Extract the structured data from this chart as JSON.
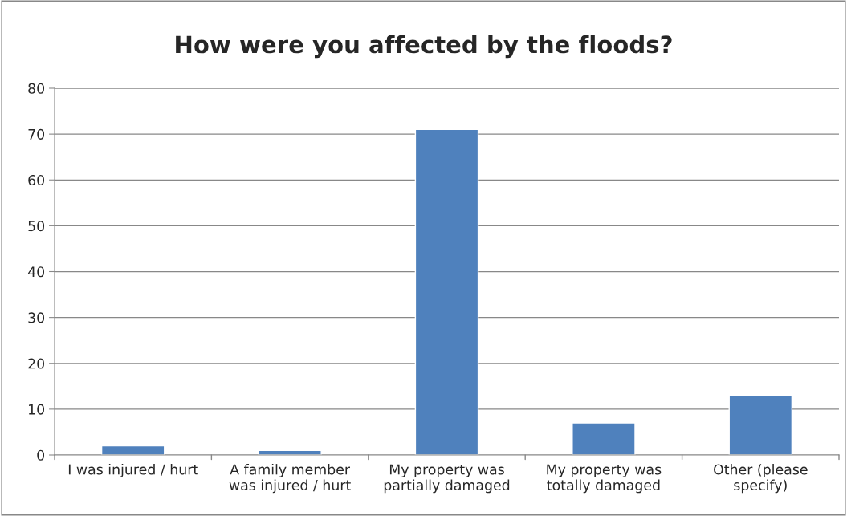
{
  "chart_data": {
    "type": "bar",
    "title": "How were you affected by the floods?",
    "categories": [
      "I was injured / hurt",
      "A family member\nwas injured / hurt",
      "My property was\npartially damaged",
      "My property was\ntotally damaged",
      "Other (please\nspecify)"
    ],
    "values": [
      2,
      1,
      71,
      7,
      13
    ],
    "color": "#4f81bd",
    "ylim": [
      0,
      80
    ],
    "yticks": [
      0,
      10,
      20,
      30,
      40,
      50,
      60,
      70,
      80
    ],
    "grid": "y",
    "legend": false
  }
}
